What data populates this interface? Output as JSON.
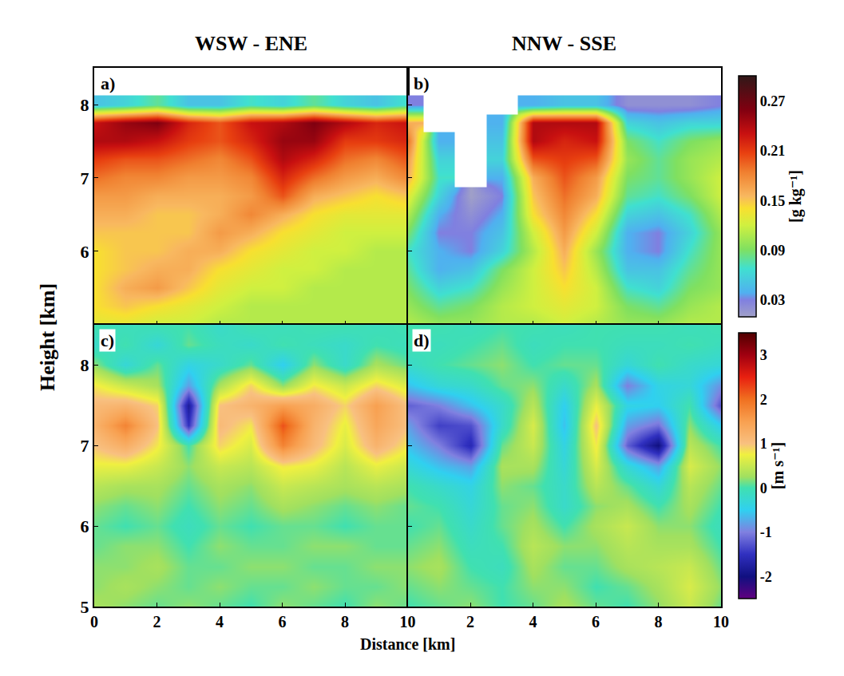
{
  "chart_data": {
    "type": "heatmap",
    "x_label": "Distance [km]",
    "y_label": "Height [km]",
    "rows": [
      {
        "colorbar": {
          "title": "[g kg⁻¹]",
          "zlim": [
            0.01,
            0.3
          ],
          "ticks": [
            0.03,
            0.09,
            0.15,
            0.21,
            0.27
          ]
        },
        "panels": [
          {
            "label": "a)",
            "title": "WSW - ENE",
            "xlim": [
              0,
              10
            ],
            "ylim": [
              5,
              8.5
            ],
            "xticks": [
              0,
              2,
              4,
              6,
              8,
              10
            ],
            "yticks": [
              6,
              7,
              8
            ],
            "tick_labels": "y",
            "x": [
              0,
              1,
              2,
              3,
              4,
              5,
              6,
              7,
              8,
              9,
              10
            ],
            "y": [
              5.0,
              5.25,
              5.5,
              5.75,
              6.0,
              6.25,
              6.5,
              6.75,
              7.0,
              7.25,
              7.5,
              7.75,
              8.0
            ],
            "z": [
              [
                0.13,
                0.13,
                0.12,
                0.12,
                0.11,
                0.11,
                0.11,
                0.11,
                0.11,
                0.11,
                0.11
              ],
              [
                0.14,
                0.15,
                0.14,
                0.13,
                0.12,
                0.11,
                0.11,
                0.11,
                0.11,
                0.11,
                0.11
              ],
              [
                0.14,
                0.16,
                0.17,
                0.15,
                0.13,
                0.12,
                0.12,
                0.11,
                0.11,
                0.11,
                0.11
              ],
              [
                0.14,
                0.15,
                0.16,
                0.16,
                0.14,
                0.13,
                0.12,
                0.12,
                0.11,
                0.11,
                0.11
              ],
              [
                0.14,
                0.15,
                0.15,
                0.16,
                0.16,
                0.14,
                0.13,
                0.12,
                0.12,
                0.11,
                0.11
              ],
              [
                0.15,
                0.15,
                0.15,
                0.15,
                0.17,
                0.16,
                0.14,
                0.13,
                0.12,
                0.12,
                0.12
              ],
              [
                0.16,
                0.16,
                0.15,
                0.15,
                0.16,
                0.18,
                0.16,
                0.14,
                0.13,
                0.13,
                0.13
              ],
              [
                0.17,
                0.17,
                0.16,
                0.16,
                0.16,
                0.17,
                0.2,
                0.16,
                0.15,
                0.14,
                0.15
              ],
              [
                0.19,
                0.18,
                0.18,
                0.17,
                0.17,
                0.18,
                0.22,
                0.19,
                0.17,
                0.16,
                0.18
              ],
              [
                0.21,
                0.2,
                0.2,
                0.19,
                0.18,
                0.2,
                0.24,
                0.22,
                0.19,
                0.18,
                0.2
              ],
              [
                0.24,
                0.24,
                0.23,
                0.21,
                0.2,
                0.22,
                0.25,
                0.25,
                0.21,
                0.21,
                0.22
              ],
              [
                0.23,
                0.25,
                0.26,
                0.22,
                0.2,
                0.23,
                0.24,
                0.26,
                0.24,
                0.22,
                0.23
              ],
              [
                0.05,
                0.06,
                0.08,
                0.05,
                0.05,
                0.07,
                0.06,
                0.08,
                0.06,
                0.05,
                0.07
              ]
            ]
          },
          {
            "label": "b)",
            "title": "NNW - SSE",
            "xlim": [
              0,
              10
            ],
            "ylim": [
              5,
              8.5
            ],
            "xticks": [
              0,
              2,
              4,
              6,
              8,
              10
            ],
            "yticks": [
              5,
              6,
              7,
              8
            ],
            "tick_labels": false,
            "x": [
              0,
              1,
              2,
              3,
              4,
              5,
              6,
              7,
              8,
              9,
              10
            ],
            "y": [
              5.0,
              5.25,
              5.5,
              5.75,
              6.0,
              6.25,
              6.5,
              6.75,
              7.0,
              7.25,
              7.5,
              7.75,
              8.0
            ],
            "z": [
              [
                0.11,
                0.1,
                0.1,
                0.11,
                0.11,
                0.12,
                0.11,
                0.1,
                0.1,
                0.11,
                0.11
              ],
              [
                0.1,
                0.08,
                0.09,
                0.11,
                0.12,
                0.13,
                0.12,
                0.09,
                0.08,
                0.1,
                0.11
              ],
              [
                0.09,
                0.06,
                0.07,
                0.1,
                0.12,
                0.14,
                0.12,
                0.07,
                0.06,
                0.09,
                0.1
              ],
              [
                0.08,
                0.04,
                0.05,
                0.09,
                0.12,
                0.15,
                0.11,
                0.05,
                0.05,
                0.08,
                0.1
              ],
              [
                0.07,
                0.04,
                0.03,
                0.06,
                0.11,
                0.16,
                0.1,
                0.04,
                0.03,
                0.07,
                0.1
              ],
              [
                0.09,
                0.03,
                0.03,
                0.05,
                0.12,
                0.17,
                0.12,
                0.04,
                0.03,
                0.06,
                0.1
              ],
              [
                0.11,
                0.04,
                0.02,
                0.04,
                0.14,
                0.18,
                0.14,
                0.06,
                0.05,
                0.07,
                0.11
              ],
              [
                0.13,
                0.06,
                0.01,
                0.03,
                0.15,
                0.19,
                0.16,
                0.08,
                0.07,
                0.09,
                0.12
              ],
              [
                0.16,
                0.07,
                null,
                0.04,
                0.16,
                0.2,
                0.17,
                0.09,
                0.08,
                0.1,
                0.12
              ],
              [
                0.17,
                0.06,
                null,
                0.06,
                0.2,
                0.21,
                0.2,
                0.1,
                0.08,
                0.1,
                0.11
              ],
              [
                0.19,
                0.04,
                null,
                0.05,
                0.24,
                0.22,
                0.23,
                0.09,
                0.07,
                0.09,
                0.1
              ],
              [
                0.16,
                null,
                null,
                0.04,
                0.24,
                0.24,
                0.24,
                0.06,
                0.05,
                0.06,
                0.06
              ],
              [
                0.03,
                null,
                null,
                null,
                0.04,
                0.05,
                0.05,
                0.02,
                0.02,
                0.02,
                0.03
              ]
            ]
          }
        ]
      },
      {
        "colorbar": {
          "title": "[m s⁻¹]",
          "zlim": [
            -2.5,
            3.5
          ],
          "ticks": [
            -2,
            -1,
            0,
            1,
            2,
            3
          ]
        },
        "panels": [
          {
            "label": "c)",
            "xlim": [
              0,
              10
            ],
            "ylim": [
              5,
              8.5
            ],
            "xticks": [
              0,
              2,
              4,
              6,
              8,
              10
            ],
            "yticks": [
              5,
              6,
              7,
              8
            ],
            "tick_labels": true,
            "x": [
              0,
              1,
              2,
              3,
              4,
              5,
              6,
              7,
              8,
              9,
              10
            ],
            "y": [
              5.0,
              5.25,
              5.5,
              5.75,
              6.0,
              6.25,
              6.5,
              6.75,
              7.0,
              7.25,
              7.5,
              7.75,
              8.0,
              8.25,
              8.5
            ],
            "z": [
              [
                0.3,
                0.2,
                0.1,
                0.2,
                0.1,
                0.0,
                0.2,
                0.1,
                0.0,
                0.2,
                0.1
              ],
              [
                0.2,
                0.3,
                0.2,
                0.1,
                0.2,
                0.1,
                0.1,
                0.2,
                0.1,
                0.1,
                0.2
              ],
              [
                0.2,
                0.2,
                0.3,
                0.1,
                0.1,
                0.2,
                0.2,
                0.1,
                0.1,
                0.2,
                0.2
              ],
              [
                0.1,
                0.2,
                0.2,
                0.0,
                0.2,
                0.1,
                0.1,
                0.2,
                0.2,
                0.1,
                0.1
              ],
              [
                0.1,
                0.0,
                0.1,
                -0.1,
                0.1,
                0.0,
                0.1,
                0.1,
                0.0,
                0.1,
                0.1
              ],
              [
                0.2,
                0.1,
                0.2,
                0.0,
                0.2,
                0.1,
                0.3,
                0.2,
                0.1,
                0.2,
                0.1
              ],
              [
                0.4,
                0.3,
                0.3,
                0.1,
                0.3,
                0.2,
                0.5,
                0.4,
                0.3,
                0.4,
                0.3
              ],
              [
                0.7,
                0.7,
                0.5,
                0.2,
                0.5,
                0.4,
                0.8,
                0.7,
                0.4,
                0.7,
                0.5
              ],
              [
                1.0,
                1.3,
                0.8,
                0.0,
                0.9,
                0.6,
                1.8,
                1.1,
                0.6,
                1.2,
                0.8
              ],
              [
                1.2,
                1.8,
                1.0,
                -1.5,
                1.1,
                0.8,
                2.2,
                1.2,
                0.7,
                1.4,
                1.0
              ],
              [
                1.1,
                1.2,
                0.9,
                -1.8,
                1.0,
                1.2,
                1.5,
                1.3,
                0.9,
                1.5,
                1.0
              ],
              [
                0.8,
                0.5,
                0.3,
                -0.8,
                0.3,
                0.9,
                0.2,
                0.8,
                0.5,
                0.9,
                0.6
              ],
              [
                0.2,
                -0.3,
                0.1,
                -0.4,
                -0.2,
                0.1,
                -0.5,
                0.2,
                -0.2,
                0.3,
                0.1
              ],
              [
                -0.2,
                0.0,
                -0.3,
                0.1,
                -0.1,
                -0.2,
                0.0,
                -0.1,
                -0.2,
                0.0,
                -0.1
              ],
              [
                0.0,
                -0.1,
                0.0,
                0.0,
                -0.2,
                0.0,
                -0.1,
                0.0,
                0.0,
                -0.1,
                0.0
              ]
            ]
          },
          {
            "label": "d)",
            "xlim": [
              0,
              10
            ],
            "ylim": [
              5,
              8.5
            ],
            "xticks": [
              2,
              4,
              6,
              8,
              10
            ],
            "yticks": [
              5,
              6,
              7,
              8
            ],
            "tick_labels": "x",
            "x": [
              0,
              1,
              2,
              3,
              4,
              5,
              6,
              7,
              8,
              9,
              10
            ],
            "y": [
              5.0,
              5.25,
              5.5,
              5.75,
              6.0,
              6.25,
              6.5,
              6.75,
              7.0,
              7.25,
              7.5,
              7.75,
              8.0,
              8.25,
              8.5
            ],
            "z": [
              [
                0.0,
                0.1,
                0.2,
                0.0,
                0.1,
                0.3,
                0.1,
                0.0,
                0.2,
                0.5,
                0.1
              ],
              [
                0.1,
                0.2,
                0.1,
                0.0,
                0.2,
                0.2,
                0.0,
                0.1,
                0.3,
                0.6,
                0.2
              ],
              [
                0.2,
                0.3,
                0.0,
                -0.1,
                0.3,
                0.1,
                0.1,
                0.3,
                0.4,
                0.5,
                0.1
              ],
              [
                0.1,
                0.2,
                -0.1,
                0.0,
                0.4,
                0.2,
                0.2,
                0.4,
                0.3,
                0.3,
                0.0
              ],
              [
                0.0,
                0.1,
                -0.2,
                0.1,
                0.3,
                0.0,
                0.3,
                0.5,
                0.2,
                0.2,
                -0.1
              ],
              [
                0.1,
                0.0,
                -0.3,
                0.1,
                0.2,
                -0.2,
                0.2,
                0.3,
                0.0,
                0.3,
                0.0
              ],
              [
                0.0,
                -0.2,
                -0.4,
                0.2,
                0.1,
                -0.2,
                0.4,
                0.1,
                -0.3,
                0.4,
                0.1
              ],
              [
                -0.3,
                -0.6,
                -0.8,
                0.3,
                0.3,
                -0.3,
                0.6,
                -0.3,
                -0.8,
                0.6,
                0.2
              ],
              [
                -0.6,
                -1.0,
                -1.6,
                0.1,
                0.5,
                -0.4,
                0.8,
                -1.2,
                -2.0,
                0.4,
                0.0
              ],
              [
                -0.8,
                -1.4,
                -1.3,
                -0.2,
                0.6,
                -0.6,
                1.0,
                -0.8,
                -1.1,
                0.2,
                -0.5
              ],
              [
                -1.2,
                -1.0,
                -0.6,
                -0.2,
                0.4,
                -0.5,
                0.7,
                -0.4,
                -0.5,
                0.0,
                -1.3
              ],
              [
                -0.6,
                -0.3,
                -0.2,
                0.1,
                0.2,
                -0.2,
                0.3,
                -1.0,
                -0.4,
                -0.3,
                -0.9
              ],
              [
                -0.2,
                0.0,
                0.1,
                0.2,
                0.0,
                0.1,
                0.1,
                -0.3,
                0.0,
                -0.2,
                -0.3
              ],
              [
                0.0,
                -0.1,
                0.0,
                0.1,
                -0.1,
                0.0,
                0.0,
                -0.1,
                -0.1,
                0.0,
                -0.1
              ],
              [
                0.0,
                0.0,
                -0.1,
                0.0,
                0.0,
                -0.1,
                0.0,
                0.0,
                0.0,
                -0.1,
                0.0
              ]
            ]
          }
        ]
      }
    ]
  }
}
